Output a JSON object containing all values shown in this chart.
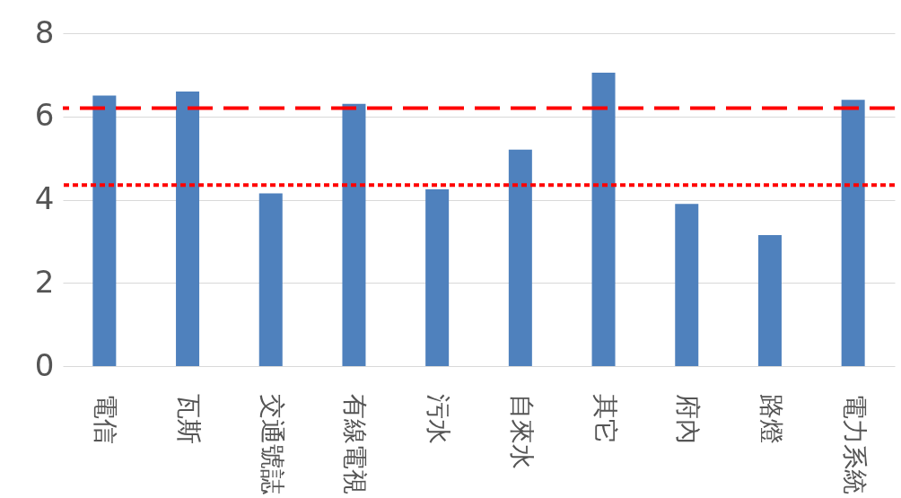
{
  "chart_data": {
    "type": "bar",
    "categories": [
      "電信",
      "瓦斯",
      "交通號誌",
      "有線電視",
      "污水",
      "自來水",
      "其它",
      "府內",
      "路燈",
      "電力系統"
    ],
    "values": [
      6.5,
      6.6,
      4.15,
      6.3,
      4.25,
      5.2,
      7.05,
      3.9,
      3.15,
      6.4
    ],
    "color": "#4f81bd",
    "ylim": [
      0,
      8
    ],
    "yticks": [
      0,
      2,
      4,
      6,
      8
    ],
    "grid": "y",
    "ref_lines": [
      {
        "axis": "y",
        "value": 6.2,
        "color": "#ff0000",
        "line_style": "dashed"
      },
      {
        "axis": "y",
        "value": 4.35,
        "color": "#ff0000",
        "line_style": "dotted"
      }
    ]
  }
}
